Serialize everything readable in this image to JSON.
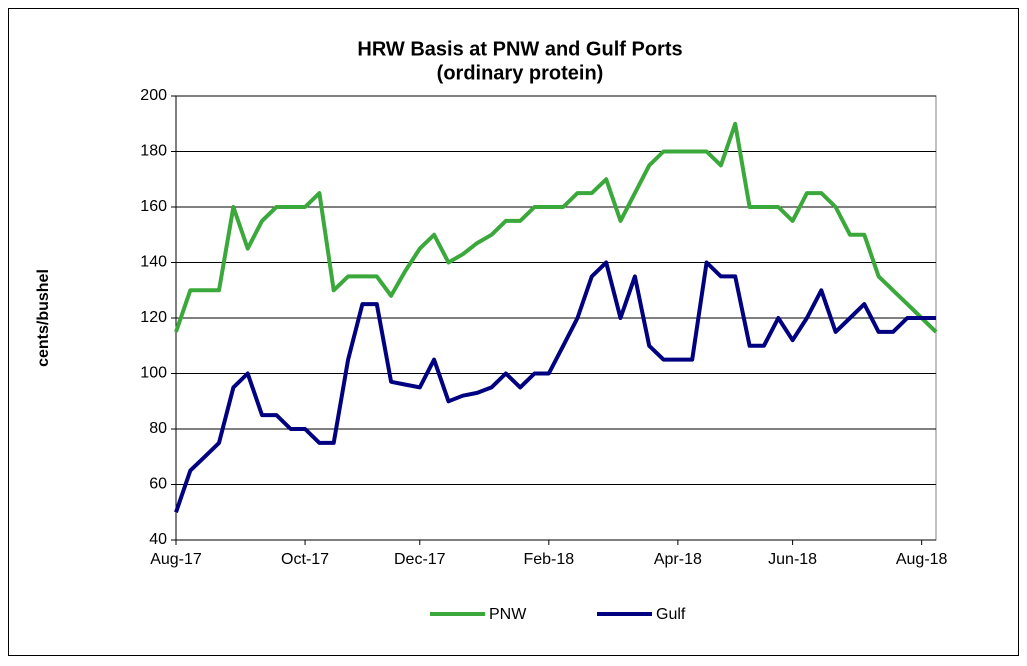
{
  "chart_data": {
    "type": "line",
    "title": [
      "HRW Basis at PNW and Gulf Ports",
      "(ordinary protein)"
    ],
    "y_label": "cents/bushel",
    "categories": [
      "Aug-17",
      null,
      null,
      null,
      null,
      null,
      null,
      null,
      null,
      "Oct-17",
      null,
      null,
      null,
      null,
      null,
      null,
      null,
      "Dec-17",
      null,
      null,
      null,
      null,
      null,
      null,
      null,
      null,
      "Feb-18",
      null,
      null,
      null,
      null,
      null,
      null,
      null,
      null,
      "Apr-18",
      null,
      null,
      null,
      null,
      null,
      null,
      null,
      "Jun-18",
      null,
      null,
      null,
      null,
      null,
      null,
      null,
      null,
      "Aug-18",
      null
    ],
    "series": [
      {
        "name": "PNW",
        "color": "#3aa83a",
        "values": [
          115,
          130,
          130,
          130,
          160,
          145,
          155,
          160,
          160,
          160,
          165,
          130,
          135,
          135,
          135,
          128,
          137,
          145,
          150,
          140,
          143,
          147,
          150,
          155,
          155,
          160,
          160,
          160,
          165,
          165,
          170,
          155,
          165,
          175,
          180,
          180,
          180,
          180,
          175,
          190,
          160,
          160,
          160,
          155,
          165,
          165,
          160,
          150,
          150,
          135,
          130,
          125,
          120,
          115
        ]
      },
      {
        "name": "Gulf",
        "color": "#000080",
        "values": [
          50,
          65,
          70,
          75,
          95,
          100,
          85,
          85,
          80,
          80,
          75,
          75,
          105,
          125,
          125,
          97,
          96,
          95,
          105,
          90,
          92,
          93,
          95,
          100,
          95,
          100,
          100,
          110,
          120,
          135,
          140,
          120,
          135,
          110,
          105,
          105,
          105,
          140,
          135,
          135,
          110,
          110,
          120,
          112,
          120,
          130,
          115,
          120,
          125,
          115,
          115,
          120,
          120,
          120
        ]
      }
    ],
    "ylim": [
      40,
      200
    ],
    "yticks": [
      40,
      60,
      80,
      100,
      120,
      140,
      160,
      180,
      200
    ],
    "grid": true,
    "legend": "bottom"
  }
}
